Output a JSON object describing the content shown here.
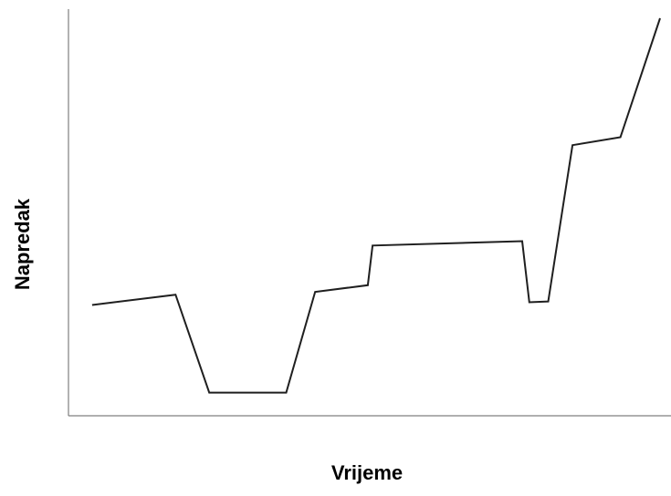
{
  "chart_data": {
    "type": "line",
    "title": "",
    "xlabel": "Vrijeme",
    "ylabel": "Napredak",
    "xlim": [
      0,
      100
    ],
    "ylim": [
      0,
      100
    ],
    "grid": false,
    "legend": "none",
    "line_color": "#1f1f1f",
    "axis_color": "#7f7f7f",
    "series": [
      {
        "x": [
          4,
          18.1,
          23.8,
          36.8,
          41.7,
          50.6,
          51.4,
          76.7,
          77.9,
          81.1,
          85.2,
          93.3,
          100
        ],
        "y": [
          27.7,
          30.3,
          5.6,
          5.6,
          31,
          32.7,
          42.7,
          43.8,
          28.4,
          28.6,
          68,
          70,
          100
        ]
      }
    ]
  }
}
